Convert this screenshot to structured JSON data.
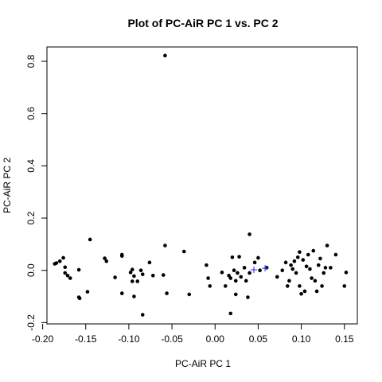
{
  "chart_data": {
    "type": "scatter",
    "title": "Plot of PC-AiR PC 1 vs. PC 2",
    "xlabel": "PC-AiR PC 1",
    "ylabel": "PC-AiR PC 2",
    "xlim": [
      -0.195,
      0.165
    ],
    "ylim": [
      -0.205,
      0.855
    ],
    "x_ticks": [
      {
        "value": -0.2,
        "label": "-0.20"
      },
      {
        "value": -0.15,
        "label": "-0.15"
      },
      {
        "value": -0.1,
        "label": "-0.10"
      },
      {
        "value": -0.05,
        "label": "-0.05"
      },
      {
        "value": 0.0,
        "label": "0.00"
      },
      {
        "value": 0.05,
        "label": "0.05"
      },
      {
        "value": 0.1,
        "label": "0.10"
      },
      {
        "value": 0.15,
        "label": "0.15"
      }
    ],
    "y_ticks": [
      {
        "value": -0.2,
        "label": "-0.2"
      },
      {
        "value": 0.0,
        "label": "0.0"
      },
      {
        "value": 0.2,
        "label": "0.2"
      },
      {
        "value": 0.4,
        "label": "0.4"
      },
      {
        "value": 0.6,
        "label": "0.6"
      },
      {
        "value": 0.8,
        "label": "0.8"
      }
    ],
    "grid": false,
    "series": [
      {
        "marker": "dot",
        "color": "#000000",
        "points": [
          [
            -0.058,
            0.822
          ],
          [
            -0.145,
            0.118
          ],
          [
            -0.184,
            0.028
          ],
          [
            -0.18,
            0.035
          ],
          [
            -0.186,
            0.025
          ],
          [
            -0.176,
            0.048
          ],
          [
            -0.174,
            0.012
          ],
          [
            -0.171,
            -0.02
          ],
          [
            -0.174,
            -0.01
          ],
          [
            -0.168,
            -0.03
          ],
          [
            -0.158,
            -0.103
          ],
          [
            -0.157,
            -0.107
          ],
          [
            -0.158,
            0.002
          ],
          [
            -0.148,
            -0.082
          ],
          [
            -0.128,
            0.046
          ],
          [
            -0.126,
            0.035
          ],
          [
            -0.116,
            -0.027
          ],
          [
            -0.108,
            0.06
          ],
          [
            -0.108,
            0.055
          ],
          [
            -0.108,
            -0.088
          ],
          [
            -0.098,
            -0.008
          ],
          [
            -0.096,
            0.003
          ],
          [
            -0.096,
            -0.042
          ],
          [
            -0.094,
            -0.022
          ],
          [
            -0.094,
            -0.1
          ],
          [
            -0.09,
            -0.042
          ],
          [
            -0.086,
            0.0
          ],
          [
            -0.084,
            -0.17
          ],
          [
            -0.084,
            -0.015
          ],
          [
            -0.076,
            0.03
          ],
          [
            -0.072,
            -0.02
          ],
          [
            -0.06,
            -0.018
          ],
          [
            -0.058,
            0.095
          ],
          [
            -0.056,
            -0.088
          ],
          [
            -0.036,
            0.072
          ],
          [
            -0.03,
            -0.092
          ],
          [
            -0.01,
            0.02
          ],
          [
            -0.008,
            -0.03
          ],
          [
            -0.006,
            -0.06
          ],
          [
            0.008,
            -0.008
          ],
          [
            0.012,
            -0.06
          ],
          [
            0.016,
            -0.02
          ],
          [
            0.018,
            -0.165
          ],
          [
            0.018,
            -0.03
          ],
          [
            0.02,
            0.05
          ],
          [
            0.022,
            0.0
          ],
          [
            0.024,
            -0.04
          ],
          [
            0.024,
            -0.092
          ],
          [
            0.026,
            -0.01
          ],
          [
            0.028,
            0.052
          ],
          [
            0.03,
            -0.025
          ],
          [
            0.034,
            0.01
          ],
          [
            0.036,
            -0.04
          ],
          [
            0.038,
            -0.103
          ],
          [
            0.04,
            0.138
          ],
          [
            0.04,
            -0.01
          ],
          [
            0.046,
            0.03
          ],
          [
            0.05,
            0.048
          ],
          [
            0.052,
            0.0
          ],
          [
            0.06,
            0.01
          ],
          [
            0.072,
            -0.025
          ],
          [
            0.078,
            0.0
          ],
          [
            0.082,
            0.03
          ],
          [
            0.084,
            -0.06
          ],
          [
            0.086,
            -0.04
          ],
          [
            0.088,
            0.02
          ],
          [
            0.09,
            0.005
          ],
          [
            0.092,
            0.035
          ],
          [
            0.094,
            -0.01
          ],
          [
            0.096,
            0.05
          ],
          [
            0.098,
            0.07
          ],
          [
            0.098,
            -0.06
          ],
          [
            0.1,
            -0.09
          ],
          [
            0.102,
            0.04
          ],
          [
            0.104,
            -0.08
          ],
          [
            0.106,
            0.015
          ],
          [
            0.108,
            0.06
          ],
          [
            0.11,
            0.005
          ],
          [
            0.112,
            -0.03
          ],
          [
            0.114,
            0.075
          ],
          [
            0.116,
            -0.04
          ],
          [
            0.118,
            -0.08
          ],
          [
            0.12,
            0.02
          ],
          [
            0.122,
            0.045
          ],
          [
            0.124,
            -0.06
          ],
          [
            0.126,
            -0.01
          ],
          [
            0.128,
            0.01
          ],
          [
            0.13,
            0.095
          ],
          [
            0.134,
            0.01
          ],
          [
            0.14,
            0.06
          ],
          [
            0.15,
            -0.06
          ],
          [
            0.152,
            -0.008
          ]
        ]
      },
      {
        "marker": "plus",
        "color": "#3333ff",
        "points": [
          [
            0.045,
            0.002
          ],
          [
            0.058,
            0.008
          ]
        ]
      }
    ]
  }
}
